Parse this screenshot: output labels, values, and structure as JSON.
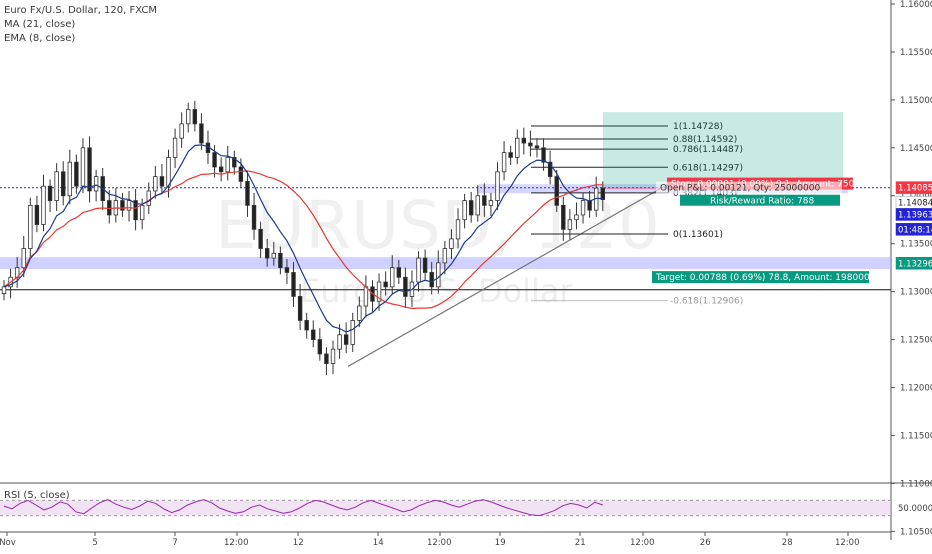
{
  "legend": {
    "symbol": "Euro Fx/U.S. Dollar, 120, FXCM",
    "ma": "MA (21, close)",
    "ema": "EMA (8, close)",
    "rsi": "RSI (5, close)"
  },
  "watermark": {
    "ticker": "EURUSD, 120",
    "name": "Euro / U.S. Dollar"
  },
  "colors": {
    "up": "#26a69a",
    "down": "#ef5350",
    "candle": "#333333",
    "ma": "#e53935",
    "ema": "#1e3a8a",
    "rsi": "#9c27b0",
    "stop": "#f23645",
    "target": "#089981",
    "price_line": "#2a2ae0"
  },
  "price_axis": {
    "labels": [
      "1.16000",
      "1.15500",
      "1.15000",
      "1.14500",
      "1.14000",
      "1.13500",
      "1.13000",
      "1.12500",
      "1.12000",
      "1.11500",
      "1.11000",
      "1.10500"
    ],
    "tags": [
      {
        "text": "1.14085",
        "bg": "#f23645",
        "fg": "#ffffff",
        "price": 1.14085
      },
      {
        "text": "1.14084",
        "bg": "#ffffff",
        "fg": "#222222",
        "price": 1.1393
      },
      {
        "text": "1.13963",
        "bg": "#2424d6",
        "fg": "#ffffff",
        "price": 1.13805
      },
      {
        "text": "01:48:14",
        "bg": "#2424d6",
        "fg": "#ffffff",
        "price": 1.1365
      },
      {
        "text": "1.13296",
        "bg": "#089981",
        "fg": "#ffffff",
        "price": 1.13296
      }
    ],
    "rsi_label": "50.0000"
  },
  "time_axis": {
    "labels": [
      {
        "t": "Nov",
        "x": 7
      },
      {
        "t": "5",
        "x": 95
      },
      {
        "t": "7",
        "x": 175
      },
      {
        "t": "12:00",
        "x": 237
      },
      {
        "t": "12",
        "x": 298
      },
      {
        "t": "14",
        "x": 378
      },
      {
        "t": "12:00",
        "x": 440
      },
      {
        "t": "19",
        "x": 500
      },
      {
        "t": "21",
        "x": 580
      },
      {
        "t": "12:00",
        "x": 643
      },
      {
        "t": "26",
        "x": 705
      },
      {
        "t": "28",
        "x": 787
      },
      {
        "t": "12:00",
        "x": 848
      }
    ]
  },
  "fibonacci": [
    {
      "label": "1(1.14728)",
      "price": 1.14728
    },
    {
      "label": "0.88(1.14592)",
      "price": 1.14592
    },
    {
      "label": "0.786(1.14487)",
      "price": 1.14487
    },
    {
      "label": "0.618(1.14297)",
      "price": 1.14297
    },
    {
      "label": "0.382(1.1403)",
      "price": 1.1403
    },
    {
      "label": "0(1.13601)",
      "price": 1.13601
    },
    {
      "label": "-0.618(1.12906)",
      "price": 1.12906
    }
  ],
  "position": {
    "stop_label": "Stop: 0.00001 (0.00%) 0.1, Amount: 750",
    "open_label": "Open P&L: 0.00121, Qty: 25000000",
    "rr_label": "Risk/Reward Ratio: 788",
    "target_label": "Target: 0.00788 (0.69%) 78.8, Amount: 198000",
    "entry": 1.14084,
    "stop": 1.14085,
    "target": 1.14872
  },
  "chart_data": {
    "type": "candlestick",
    "title": "Euro Fx/U.S. Dollar, 120, FXCM",
    "ylim": [
      1.1025,
      1.1625
    ],
    "x_labels": [
      "Nov",
      "5",
      "7",
      "12:00",
      "12",
      "14",
      "12:00",
      "19",
      "21",
      "12:00",
      "26",
      "28",
      "12:00"
    ],
    "close_path": [
      1.1305,
      1.1315,
      1.1325,
      1.1345,
      1.139,
      1.137,
      1.141,
      1.1395,
      1.1425,
      1.14,
      1.1435,
      1.141,
      1.145,
      1.1405,
      1.142,
      1.1395,
      1.138,
      1.1395,
      1.1385,
      1.1395,
      1.1375,
      1.139,
      1.1405,
      1.142,
      1.141,
      1.144,
      1.146,
      1.1475,
      1.149,
      1.1475,
      1.1455,
      1.1445,
      1.143,
      1.1425,
      1.144,
      1.143,
      1.1415,
      1.139,
      1.1365,
      1.1345,
      1.1335,
      1.134,
      1.1325,
      1.132,
      1.1295,
      1.127,
      1.126,
      1.125,
      1.1235,
      1.1225,
      1.124,
      1.1255,
      1.1245,
      1.127,
      1.1285,
      1.1305,
      1.129,
      1.131,
      1.1305,
      1.1325,
      1.1315,
      1.1295,
      1.131,
      1.1335,
      1.132,
      1.1305,
      1.133,
      1.1345,
      1.1355,
      1.1375,
      1.1395,
      1.138,
      1.14,
      1.139,
      1.1395,
      1.1425,
      1.1445,
      1.144,
      1.146,
      1.1455,
      1.1452,
      1.145,
      1.1435,
      1.142,
      1.139,
      1.1365,
      1.1375,
      1.138,
      1.1395,
      1.1385,
      1.1408,
      1.1396
    ],
    "series": [
      {
        "name": "MA (21, close)",
        "color": "#e53935"
      },
      {
        "name": "EMA (8, close)",
        "color": "#1e3a8a"
      }
    ],
    "rsi": {
      "name": "RSI (5, close)",
      "values": [
        55,
        48,
        62,
        70,
        58,
        45,
        52,
        66,
        60,
        40,
        35,
        50,
        64,
        72,
        60,
        52,
        46,
        55,
        68,
        62,
        48,
        38,
        45,
        58,
        66,
        72,
        64,
        50,
        42,
        36,
        40,
        52,
        58,
        48,
        42,
        36,
        40,
        50,
        62,
        70,
        66,
        58,
        50,
        45,
        52,
        64,
        70,
        62,
        55,
        48,
        40,
        45,
        56,
        64,
        70,
        66,
        58,
        52,
        60,
        68,
        72,
        66,
        58,
        50,
        44,
        38,
        32,
        30,
        36,
        44,
        56,
        62,
        58,
        50,
        65,
        58
      ],
      "ylim": [
        0,
        100
      ],
      "level": 50
    }
  }
}
